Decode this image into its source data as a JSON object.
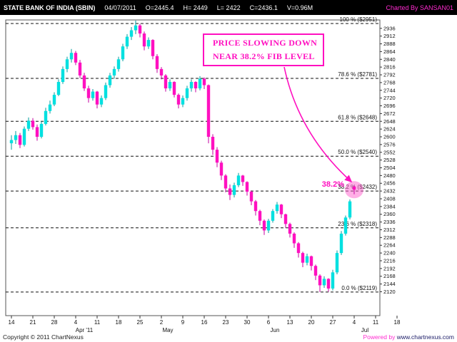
{
  "header": {
    "symbol": "STATE BANK OF INDIA (SBIN)",
    "date": "04/07/2011",
    "open": "O=2445.4",
    "high": "H= 2449",
    "low": "L= 2422",
    "close": "C=2436.1",
    "volume": "V=0.96M",
    "charted_by": "Charted By SANSAN01"
  },
  "annotation": {
    "line1": "PRICE SLOWING DOWN",
    "line2": "NEAR 38.2% FIB LEVEL",
    "callout_label": "38.2%"
  },
  "footer": {
    "copyright": "Copyright © 2011 ChartNexus",
    "powered_by": "Powered by ",
    "powered_url": "www.chartnexus.com"
  },
  "colors": {
    "bull": "#00e0e0",
    "bull_wick": "#009c9c",
    "bear": "#ff10c0",
    "bear_wick": "#c400a0",
    "accent": "#ff10c0",
    "axis_text": "#111111",
    "fib_line": "#111111",
    "highlight_fill": "#ff5fce"
  },
  "chart_data": {
    "type": "candlestick",
    "instrument": "STATE BANK OF INDIA (SBIN)",
    "last_quote": {
      "open": 2445.4,
      "high": 2449,
      "low": 2422,
      "close": 2436.1,
      "volume": "0.96M",
      "date": "04/07/2011"
    },
    "price_axis": {
      "min": 2046,
      "max": 2962,
      "labels": [
        2936,
        2912,
        2888,
        2864,
        2840,
        2816,
        2792,
        2768,
        2744,
        2720,
        2696,
        2672,
        2648,
        2624,
        2600,
        2576,
        2552,
        2528,
        2504,
        2480,
        2456,
        2432,
        2408,
        2384,
        2360,
        2336,
        2312,
        2288,
        2264,
        2240,
        2216,
        2192,
        2168,
        2144,
        2120
      ]
    },
    "fib_levels": [
      {
        "label": "100 %  ($2951)",
        "value": 2951
      },
      {
        "label": "78.6 %  ($2781)",
        "value": 2781
      },
      {
        "label": "61.8 %  ($2648)",
        "value": 2648
      },
      {
        "label": "50.0 %  ($2540)",
        "value": 2540
      },
      {
        "label": "38.2 %  ($2432)",
        "value": 2432
      },
      {
        "label": "23.6 %  ($2318)",
        "value": 2318
      },
      {
        "label": "0.0 %  ($2119)",
        "value": 2119
      }
    ],
    "x_axis": {
      "tick_labels": [
        "14",
        "21",
        "28",
        "4",
        "11",
        "18",
        "25",
        "2",
        "9",
        "16",
        "23",
        "30",
        "6",
        "13",
        "20",
        "27",
        "4",
        "11",
        "18"
      ],
      "tick_slots": [
        0,
        5,
        10,
        15,
        20,
        25,
        30,
        35,
        40,
        45,
        50,
        55,
        60,
        65,
        70,
        75,
        80,
        85,
        90
      ],
      "months": [
        {
          "label": "Apr '11",
          "slot": 17
        },
        {
          "label": "May",
          "slot": 36.5
        },
        {
          "label": "Jun",
          "slot": 61.5
        },
        {
          "label": "Jul",
          "slot": 82.5
        }
      ]
    },
    "highlight": {
      "candle_index": 80,
      "fib_value": 2432
    },
    "candles": [
      [
        2580,
        2605,
        2560,
        2590
      ],
      [
        2590,
        2618,
        2578,
        2605
      ],
      [
        2605,
        2612,
        2565,
        2575
      ],
      [
        2575,
        2632,
        2570,
        2625
      ],
      [
        2625,
        2660,
        2618,
        2650
      ],
      [
        2650,
        2658,
        2622,
        2630
      ],
      [
        2630,
        2638,
        2588,
        2600
      ],
      [
        2600,
        2648,
        2595,
        2640
      ],
      [
        2640,
        2690,
        2635,
        2680
      ],
      [
        2680,
        2712,
        2672,
        2700
      ],
      [
        2700,
        2738,
        2695,
        2730
      ],
      [
        2730,
        2778,
        2726,
        2770
      ],
      [
        2770,
        2818,
        2764,
        2810
      ],
      [
        2810,
        2848,
        2800,
        2840
      ],
      [
        2840,
        2872,
        2830,
        2860
      ],
      [
        2860,
        2866,
        2822,
        2830
      ],
      [
        2830,
        2838,
        2782,
        2790
      ],
      [
        2790,
        2798,
        2742,
        2750
      ],
      [
        2750,
        2758,
        2706,
        2720
      ],
      [
        2720,
        2748,
        2712,
        2740
      ],
      [
        2740,
        2742,
        2688,
        2700
      ],
      [
        2700,
        2728,
        2692,
        2720
      ],
      [
        2720,
        2768,
        2714,
        2760
      ],
      [
        2760,
        2798,
        2752,
        2790
      ],
      [
        2790,
        2818,
        2780,
        2810
      ],
      [
        2810,
        2848,
        2802,
        2840
      ],
      [
        2840,
        2888,
        2834,
        2880
      ],
      [
        2880,
        2918,
        2872,
        2910
      ],
      [
        2910,
        2940,
        2900,
        2930
      ],
      [
        2930,
        2960,
        2918,
        2945
      ],
      [
        2945,
        2950,
        2908,
        2920
      ],
      [
        2920,
        2926,
        2868,
        2880
      ],
      [
        2880,
        2908,
        2872,
        2900
      ],
      [
        2900,
        2902,
        2840,
        2850
      ],
      [
        2850,
        2856,
        2798,
        2810
      ],
      [
        2810,
        2816,
        2778,
        2790
      ],
      [
        2790,
        2794,
        2740,
        2750
      ],
      [
        2750,
        2778,
        2742,
        2770
      ],
      [
        2770,
        2772,
        2722,
        2730
      ],
      [
        2730,
        2734,
        2688,
        2700
      ],
      [
        2700,
        2728,
        2692,
        2720
      ],
      [
        2720,
        2758,
        2712,
        2750
      ],
      [
        2750,
        2778,
        2740,
        2770
      ],
      [
        2770,
        2772,
        2738,
        2750
      ],
      [
        2750,
        2788,
        2744,
        2780
      ],
      [
        2780,
        2784,
        2748,
        2760
      ],
      [
        2760,
        2762,
        2580,
        2600
      ],
      [
        2600,
        2608,
        2544,
        2560
      ],
      [
        2560,
        2568,
        2506,
        2520
      ],
      [
        2520,
        2526,
        2466,
        2480
      ],
      [
        2480,
        2484,
        2428,
        2440
      ],
      [
        2440,
        2452,
        2404,
        2420
      ],
      [
        2420,
        2458,
        2412,
        2450
      ],
      [
        2450,
        2488,
        2444,
        2480
      ],
      [
        2480,
        2482,
        2448,
        2460
      ],
      [
        2460,
        2462,
        2418,
        2430
      ],
      [
        2430,
        2434,
        2388,
        2400
      ],
      [
        2400,
        2404,
        2356,
        2370
      ],
      [
        2370,
        2374,
        2326,
        2340
      ],
      [
        2340,
        2344,
        2296,
        2310
      ],
      [
        2310,
        2346,
        2302,
        2340
      ],
      [
        2340,
        2376,
        2334,
        2370
      ],
      [
        2370,
        2398,
        2362,
        2390
      ],
      [
        2390,
        2392,
        2348,
        2360
      ],
      [
        2360,
        2362,
        2318,
        2330
      ],
      [
        2330,
        2334,
        2288,
        2300
      ],
      [
        2300,
        2304,
        2256,
        2270
      ],
      [
        2270,
        2274,
        2226,
        2240
      ],
      [
        2240,
        2244,
        2196,
        2210
      ],
      [
        2210,
        2238,
        2202,
        2230
      ],
      [
        2230,
        2232,
        2186,
        2200
      ],
      [
        2200,
        2204,
        2156,
        2170
      ],
      [
        2170,
        2174,
        2119,
        2140
      ],
      [
        2140,
        2168,
        2132,
        2160
      ],
      [
        2160,
        2162,
        2120,
        2130
      ],
      [
        2130,
        2188,
        2124,
        2180
      ],
      [
        2180,
        2248,
        2174,
        2240
      ],
      [
        2240,
        2308,
        2234,
        2300
      ],
      [
        2300,
        2356,
        2294,
        2350
      ],
      [
        2350,
        2406,
        2344,
        2400
      ],
      [
        2445.4,
        2449,
        2422,
        2436.1
      ]
    ]
  }
}
